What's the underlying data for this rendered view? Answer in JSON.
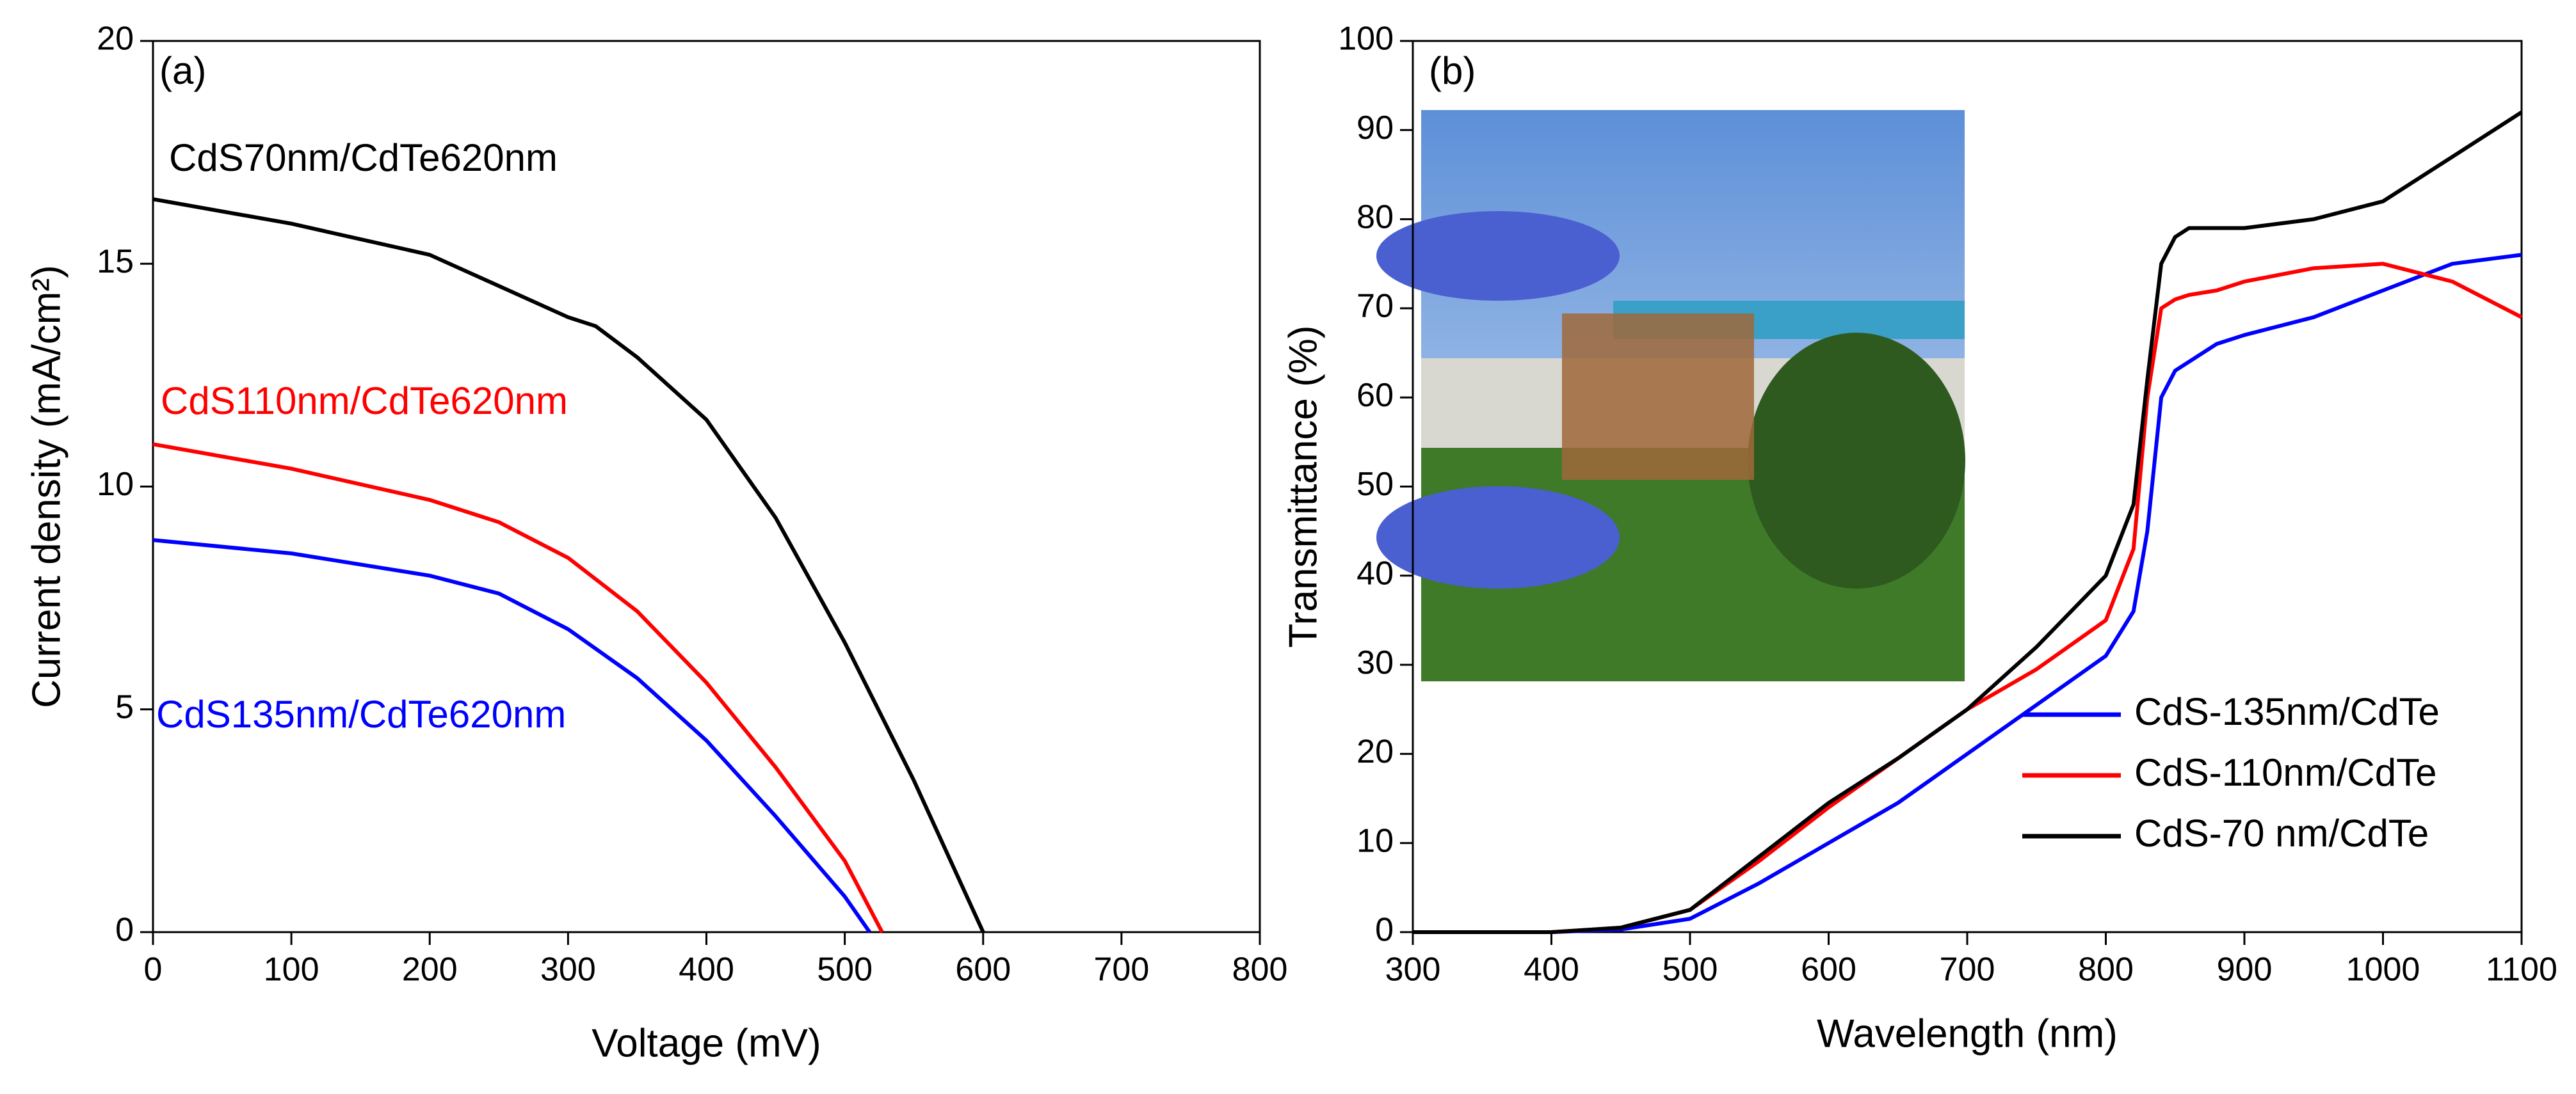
{
  "chart_data": [
    {
      "type": "line",
      "annotation": "(a)",
      "xlabel": "Voltage (mV)",
      "ylabel": "Current density (mA/cm²)",
      "xlim": [
        0,
        800
      ],
      "xticks": [
        0,
        100,
        200,
        300,
        400,
        500,
        600,
        700,
        800
      ],
      "ylim": [
        0,
        20
      ],
      "yticks": [
        0,
        5,
        10,
        15,
        20
      ],
      "label_series": true,
      "series": [
        {
          "name": "CdS70nm/CdTe620nm",
          "color": "#000000",
          "x": [
            0,
            100,
            200,
            300,
            320,
            350,
            400,
            450,
            500,
            550,
            600
          ],
          "values": [
            16.45,
            15.9,
            15.2,
            13.8,
            13.6,
            12.9,
            11.5,
            9.3,
            6.5,
            3.4,
            0
          ]
        },
        {
          "name": "CdS110nm/CdTe620nm",
          "color": "#ff0000",
          "x": [
            0,
            100,
            200,
            250,
            300,
            350,
            400,
            450,
            500,
            527
          ],
          "values": [
            10.95,
            10.4,
            9.7,
            9.2,
            8.4,
            7.2,
            5.6,
            3.7,
            1.6,
            0
          ]
        },
        {
          "name": "CdS135nm/CdTe620nm",
          "color": "#0000ff",
          "x": [
            0,
            100,
            200,
            250,
            300,
            350,
            400,
            450,
            500,
            518
          ],
          "values": [
            8.8,
            8.5,
            8.0,
            7.6,
            6.8,
            5.7,
            4.3,
            2.6,
            0.8,
            0
          ]
        }
      ]
    },
    {
      "type": "line",
      "annotation": "(b)",
      "xlabel": "Wavelength (nm)",
      "ylabel": "Transmittance (%)",
      "xlim": [
        300,
        1100
      ],
      "xticks": [
        300,
        400,
        500,
        600,
        700,
        800,
        900,
        1000,
        1100
      ],
      "ylim": [
        0,
        100
      ],
      "yticks": [
        0,
        10,
        20,
        30,
        40,
        50,
        60,
        70,
        80,
        90,
        100
      ],
      "legend": "lower right",
      "x": [
        300,
        350,
        400,
        450,
        500,
        550,
        600,
        650,
        700,
        750,
        800,
        820,
        830,
        840,
        850,
        860,
        880,
        900,
        950,
        1000,
        1050,
        1100
      ],
      "series": [
        {
          "name": "CdS-135nm/CdTe",
          "color": "#0000ff",
          "values": [
            0,
            0,
            0,
            0.3,
            1.5,
            5.5,
            10,
            14.5,
            20,
            25.5,
            31,
            36,
            45,
            60,
            63,
            64,
            66,
            67,
            69,
            72,
            75,
            76
          ]
        },
        {
          "name": "CdS-110nm/CdTe",
          "color": "#ff0000",
          "values": [
            0,
            0,
            0,
            0.5,
            2.5,
            8,
            14,
            19.5,
            25,
            29.5,
            35,
            43,
            60,
            70,
            71,
            71.5,
            72,
            73,
            74.5,
            75,
            73,
            69
          ]
        },
        {
          "name": "CdS-70 nm/CdTe",
          "color": "#000000",
          "values": [
            0,
            0,
            0,
            0.5,
            2.5,
            8.5,
            14.5,
            19.5,
            25,
            32,
            40,
            48,
            62,
            75,
            78,
            79,
            79,
            79,
            80,
            82,
            87,
            92
          ]
        }
      ]
    }
  ]
}
